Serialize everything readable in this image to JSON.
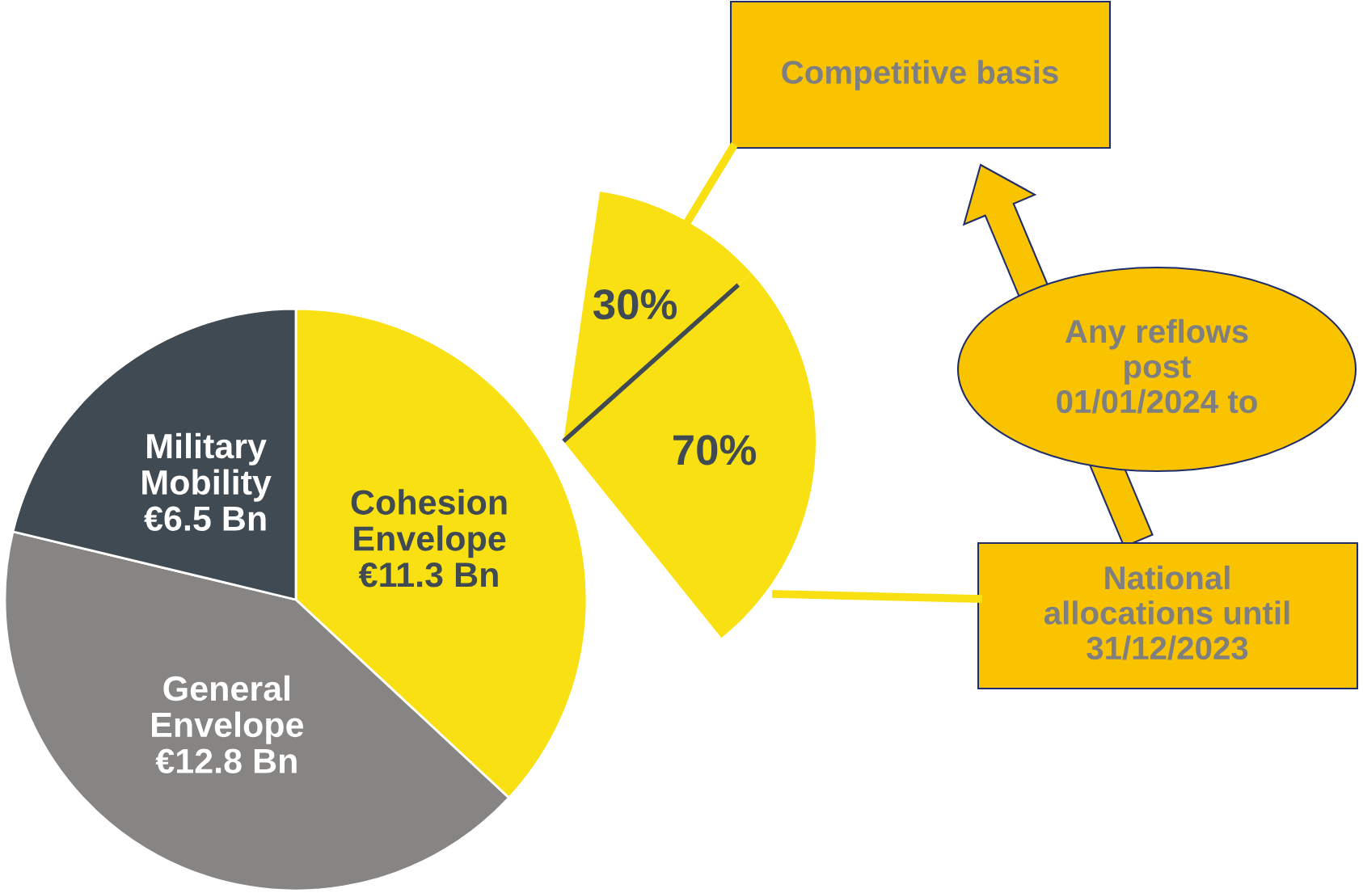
{
  "chart_data": [
    {
      "type": "pie",
      "categories": [
        "Cohesion\nEnvelope",
        "General\nEnvelope",
        "Military\nMobility"
      ],
      "values": [
        11.3,
        12.8,
        6.5
      ],
      "value_labels": [
        "€11.3 Bn",
        "€12.8 Bn",
        "€6.5 Bn"
      ],
      "colors": [
        "#f9e012",
        "#878583",
        "#404a52"
      ]
    },
    {
      "type": "pie",
      "categories": [
        null,
        null
      ],
      "values": [
        30,
        70
      ],
      "value_labels": [
        "30%",
        "70%"
      ],
      "colors": [
        "#f9e012",
        "#f9e012"
      ],
      "annotations": [
        "Competitive basis",
        "Any reflows\npost\n01/01/2024 to",
        "National\nallocations until\n31/12/2023"
      ]
    }
  ]
}
